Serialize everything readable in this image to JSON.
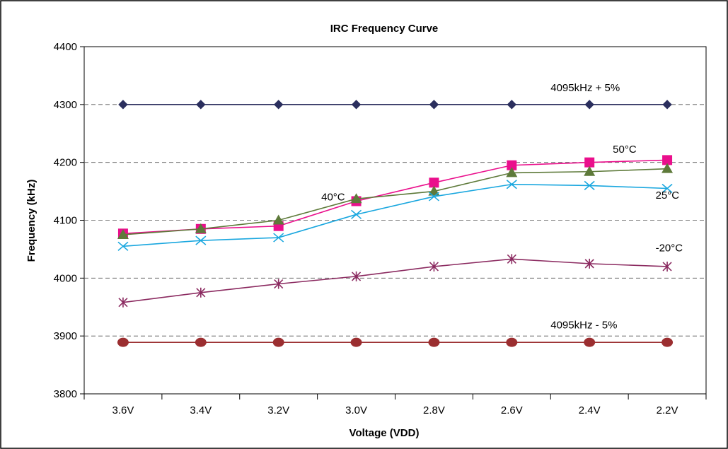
{
  "chart_data": {
    "type": "line",
    "title": "IRC Frequency Curve",
    "xlabel": "Voltage (VDD)",
    "ylabel": "Frequency (kHz)",
    "categories": [
      "3.6V",
      "3.4V",
      "3.2V",
      "3.0V",
      "2.8V",
      "2.6V",
      "2.4V",
      "2.2V"
    ],
    "ylim": [
      3800,
      4400
    ],
    "yticks": [
      "3800",
      "3900",
      "4000",
      "4100",
      "4200",
      "4300",
      "4400"
    ],
    "grid": "horizontal dashed at 3900, 4000, 4100, 4200, 4300",
    "series": [
      {
        "key": "upper",
        "values": [
          4300,
          4300,
          4300,
          4300,
          4300,
          4300,
          4300,
          4300
        ],
        "color": "#2b2f5e",
        "marker": "diamond"
      },
      {
        "key": "t50",
        "values": [
          4077,
          4085,
          4090,
          4133,
          4165,
          4195,
          4200,
          4204
        ],
        "color": "#ea0f8c",
        "marker": "square"
      },
      {
        "key": "t40",
        "values": [
          4075,
          4085,
          4100,
          4137,
          4150,
          4182,
          4184,
          4189
        ],
        "color": "#5e7a3a",
        "marker": "triangle"
      },
      {
        "key": "t25",
        "values": [
          4055,
          4065,
          4070,
          4110,
          4141,
          4162,
          4160,
          4155
        ],
        "color": "#1aa7df",
        "marker": "x"
      },
      {
        "key": "tm20",
        "values": [
          3958,
          3975,
          3990,
          4003,
          4020,
          4033,
          4025,
          4020
        ],
        "color": "#8b2a60",
        "marker": "asterisk"
      },
      {
        "key": "lower",
        "values": [
          3889,
          3889,
          3889,
          3889,
          3889,
          3889,
          3889,
          3889
        ],
        "color": "#9b2e30",
        "marker": "circle"
      }
    ],
    "annotations": [
      {
        "text": "4095kHz + 5%",
        "x_index": 5.5,
        "y": 4323
      },
      {
        "text": "50°C",
        "x_index": 6.3,
        "y": 4217
      },
      {
        "text": "40°C",
        "x_index": 2.55,
        "y": 4134
      },
      {
        "text": "25°C",
        "x_index": 6.85,
        "y": 4137
      },
      {
        "text": "-20°C",
        "x_index": 6.85,
        "y": 4046
      },
      {
        "text": "4095kHz - 5%",
        "x_index": 5.5,
        "y": 3913
      }
    ]
  }
}
